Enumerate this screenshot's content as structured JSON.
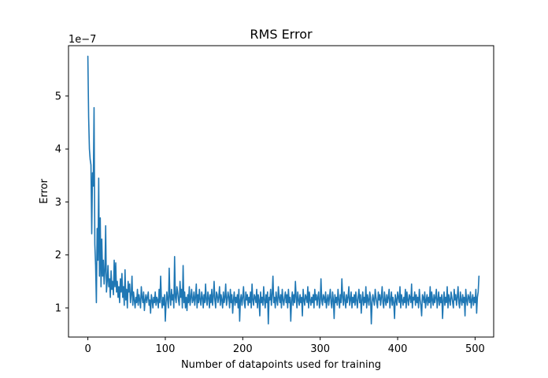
{
  "chart_data": {
    "type": "line",
    "title": "RMS Error",
    "xlabel": "Number of datapoints used for training",
    "ylabel": "Error",
    "y_offset_label": "1e−7",
    "xlim": [
      -25,
      524
    ],
    "ylim": [
      0.45,
      5.95
    ],
    "x_ticks": [
      0,
      100,
      200,
      300,
      400,
      500
    ],
    "x_tick_labels": [
      "0",
      "100",
      "200",
      "300",
      "400",
      "500"
    ],
    "y_ticks": [
      1,
      2,
      3,
      4,
      5
    ],
    "y_tick_labels": [
      "1",
      "2",
      "3",
      "4",
      "5"
    ],
    "grid": false,
    "line_color": "#1f77b4",
    "series": [
      {
        "x_start": 0,
        "x_step": 1,
        "values": [
          5.75,
          4.6,
          4.0,
          3.8,
          3.7,
          2.4,
          3.55,
          3.3,
          4.78,
          2.2,
          1.8,
          1.1,
          2.5,
          1.9,
          3.45,
          1.6,
          2.7,
          1.4,
          2.3,
          1.6,
          1.9,
          1.45,
          1.7,
          2.55,
          1.3,
          1.5,
          1.8,
          1.4,
          1.55,
          1.2,
          1.7,
          1.35,
          1.5,
          1.25,
          1.9,
          1.4,
          1.85,
          1.3,
          1.5,
          1.2,
          1.4,
          1.1,
          1.55,
          1.3,
          1.65,
          1.2,
          1.4,
          1.05,
          1.72,
          1.15,
          1.35,
          1.0,
          1.5,
          1.3,
          1.45,
          1.1,
          1.25,
          1.6,
          1.05,
          1.3,
          1.15,
          1.0,
          1.2,
          1.1,
          1.35,
          1.05,
          1.25,
          1.15,
          1.0,
          1.4,
          1.2,
          1.1,
          1.3,
          0.95,
          1.15,
          1.25,
          1.1,
          1.2,
          1.3,
          1.05,
          1.15,
          0.9,
          1.25,
          1.15,
          1.0,
          1.2,
          1.1,
          1.3,
          1.05,
          1.2,
          1.15,
          1.0,
          1.35,
          1.1,
          1.6,
          1.15,
          1.0,
          1.2,
          1.05,
          1.25,
          0.75,
          1.1,
          1.3,
          1.15,
          1.0,
          1.75,
          1.2,
          1.05,
          1.35,
          1.15,
          1.25,
          1.0,
          1.97,
          1.2,
          1.1,
          1.4,
          1.3,
          1.15,
          1.05,
          1.5,
          1.2,
          1.35,
          1.0,
          1.8,
          1.1,
          1.3,
          1.0,
          1.2,
          0.95,
          1.25,
          1.1,
          1.4,
          1.05,
          1.2,
          1.35,
          1.1,
          1.15,
          1.3,
          1.05,
          1.2,
          1.45,
          1.0,
          1.25,
          1.1,
          1.35,
          1.15,
          1.05,
          1.3,
          1.2,
          1.0,
          1.25,
          1.1,
          1.45,
          1.15,
          1.05,
          1.3,
          1.2,
          1.0,
          1.25,
          1.1,
          1.35,
          1.05,
          1.2,
          1.5,
          1.15,
          1.0,
          1.3,
          1.25,
          1.1,
          1.2,
          1.4,
          1.05,
          1.25,
          1.15,
          1.0,
          1.3,
          1.1,
          1.2,
          1.45,
          1.05,
          1.15,
          1.3,
          1.2,
          1.0,
          1.35,
          1.1,
          1.25,
          0.9,
          1.15,
          1.3,
          1.05,
          1.2,
          1.1,
          1.25,
          1.0,
          1.35,
          0.75,
          1.15,
          1.25,
          1.05,
          1.2,
          1.4,
          1.1,
          1.0,
          1.3,
          1.15,
          1.25,
          1.05,
          1.2,
          1.1,
          1.3,
          1.0,
          1.45,
          1.15,
          1.05,
          1.25,
          1.2,
          1.1,
          1.35,
          1.0,
          1.25,
          1.15,
          0.85,
          1.3,
          1.1,
          1.2,
          1.05,
          1.4,
          1.15,
          1.0,
          1.25,
          1.1,
          1.3,
          0.7,
          1.2,
          1.15,
          1.35,
          1.05,
          1.25,
          1.6,
          1.1,
          1.2,
          1.0,
          1.3,
          1.15,
          1.05,
          1.4,
          1.2,
          1.1,
          1.25,
          1.0,
          1.35,
          1.15,
          1.05,
          1.2,
          1.3,
          1.1,
          1.25,
          1.0,
          1.35,
          1.1,
          1.2,
          0.75,
          1.15,
          1.3,
          1.05,
          1.25,
          1.1,
          1.5,
          1.2,
          1.0,
          1.3,
          1.15,
          1.05,
          1.25,
          1.1,
          1.2,
          0.85,
          1.35,
          1.15,
          1.05,
          1.25,
          1.2,
          1.1,
          1.4,
          1.0,
          1.3,
          1.15,
          1.05,
          1.2,
          1.1,
          1.25,
          1.0,
          1.35,
          1.15,
          1.25,
          1.05,
          1.2,
          1.3,
          1.0,
          1.1,
          1.55,
          1.15,
          1.05,
          1.25,
          1.2,
          1.1,
          1.3,
          1.0,
          1.15,
          1.25,
          1.05,
          1.2,
          1.35,
          1.1,
          1.0,
          1.3,
          1.15,
          0.8,
          1.25,
          1.1,
          1.2,
          1.05,
          1.35,
          1.15,
          1.0,
          1.25,
          1.1,
          1.55,
          1.2,
          1.05,
          1.3,
          1.15,
          1.0,
          1.25,
          1.1,
          1.2,
          1.4,
          1.05,
          1.15,
          1.3,
          1.0,
          1.2,
          1.1,
          1.25,
          1.05,
          1.3,
          1.15,
          1.0,
          1.2,
          1.35,
          1.1,
          1.25,
          0.9,
          1.15,
          1.3,
          1.05,
          1.2,
          1.1,
          1.4,
          1.0,
          1.25,
          1.15,
          1.05,
          1.3,
          1.2,
          0.7,
          1.1,
          1.25,
          1.15,
          1.05,
          1.35,
          1.2,
          1.1,
          1.0,
          1.3,
          1.15,
          1.25,
          1.05,
          1.2,
          1.4,
          1.1,
          1.0,
          1.3,
          1.15,
          1.05,
          1.25,
          1.1,
          1.2,
          1.35,
          1.0,
          1.15,
          1.3,
          1.05,
          1.2,
          1.1,
          0.8,
          1.25,
          1.15,
          1.05,
          1.3,
          1.2,
          1.1,
          1.4,
          1.0,
          1.25,
          1.15,
          1.05,
          1.2,
          1.1,
          1.35,
          1.0,
          1.3,
          1.15,
          1.05,
          1.25,
          1.2,
          1.1,
          1.45,
          1.0,
          1.2,
          1.15,
          1.3,
          1.05,
          1.25,
          1.1,
          1.2,
          1.0,
          1.35,
          1.15,
          1.05,
          0.85,
          1.25,
          1.2,
          1.1,
          1.3,
          1.0,
          1.15,
          1.25,
          1.05,
          1.2,
          1.1,
          1.4,
          1.0,
          1.3,
          1.15,
          1.05,
          1.25,
          1.1,
          1.2,
          1.35,
          1.0,
          1.15,
          1.3,
          1.05,
          1.2,
          1.1,
          1.25,
          0.8,
          1.15,
          1.3,
          1.05,
          1.2,
          1.1,
          1.4,
          1.0,
          1.25,
          1.15,
          1.05,
          1.3,
          1.2,
          1.1,
          1.0,
          1.35,
          1.15,
          1.25,
          1.05,
          1.2,
          1.4,
          1.1,
          1.0,
          1.3,
          1.15,
          1.05,
          1.25,
          1.1,
          1.2,
          0.85,
          1.35,
          1.15,
          1.05,
          1.25,
          1.2,
          1.1,
          1.3,
          1.0,
          1.15,
          1.25,
          1.05,
          1.2,
          1.1,
          1.35,
          0.9,
          1.2,
          1.3,
          1.6
        ]
      }
    ]
  }
}
